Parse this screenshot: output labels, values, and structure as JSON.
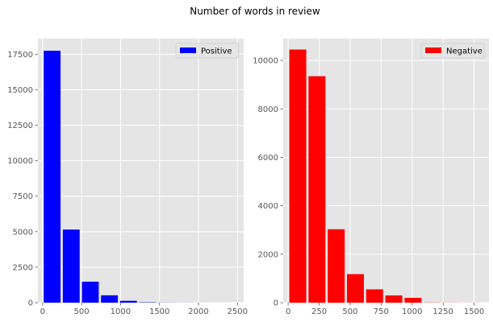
{
  "figure": {
    "suptitle": "Number of words in review"
  },
  "chart_data": [
    {
      "type": "bar",
      "subtype": "histogram",
      "panel": "left",
      "color": "#0000ff",
      "background": "#e5e5e5",
      "grid": true,
      "legend": {
        "position": "top-right",
        "label": "Positive"
      },
      "xlim": [
        -60,
        2580
      ],
      "ylim": [
        0,
        18600
      ],
      "xticks": [
        0,
        500,
        1000,
        1500,
        2000,
        2500
      ],
      "xtick_labels": [
        "0",
        "500",
        "1000",
        "1500",
        "2000",
        "2500"
      ],
      "yticks": [
        0,
        2500,
        5000,
        7500,
        10000,
        12500,
        15000,
        17500
      ],
      "ytick_labels": [
        "0",
        "2500",
        "5000",
        "7500",
        "10000",
        "12500",
        "15000",
        "17500"
      ],
      "bins": [
        {
          "x0": 0,
          "x1": 245,
          "value": 17750
        },
        {
          "x0": 245,
          "x1": 490,
          "value": 5150
        },
        {
          "x0": 490,
          "x1": 735,
          "value": 1480
        },
        {
          "x0": 735,
          "x1": 980,
          "value": 520
        },
        {
          "x0": 980,
          "x1": 1225,
          "value": 130
        },
        {
          "x0": 1225,
          "x1": 1470,
          "value": 25
        },
        {
          "x0": 1470,
          "x1": 1715,
          "value": 8
        },
        {
          "x0": 1715,
          "x1": 1960,
          "value": 4
        },
        {
          "x0": 1960,
          "x1": 2205,
          "value": 2
        },
        {
          "x0": 2205,
          "x1": 2450,
          "value": 1
        }
      ]
    },
    {
      "type": "bar",
      "subtype": "histogram",
      "panel": "right",
      "color": "#ff0000",
      "background": "#e5e5e5",
      "grid": true,
      "legend": {
        "position": "top-right",
        "label": "Negative"
      },
      "xlim": [
        -40,
        1620
      ],
      "ylim": [
        0,
        10900
      ],
      "xticks": [
        0,
        250,
        500,
        750,
        1000,
        1250,
        1500
      ],
      "xtick_labels": [
        "0",
        "250",
        "500",
        "750",
        "1000",
        "1250",
        "1500"
      ],
      "yticks": [
        0,
        2000,
        4000,
        6000,
        8000,
        10000
      ],
      "ytick_labels": [
        "0",
        "2000",
        "4000",
        "6000",
        "8000",
        "10000"
      ],
      "bins": [
        {
          "x0": 0,
          "x1": 155,
          "value": 10450
        },
        {
          "x0": 155,
          "x1": 310,
          "value": 9350
        },
        {
          "x0": 310,
          "x1": 465,
          "value": 3030
        },
        {
          "x0": 465,
          "x1": 620,
          "value": 1180
        },
        {
          "x0": 620,
          "x1": 775,
          "value": 550
        },
        {
          "x0": 775,
          "x1": 930,
          "value": 300
        },
        {
          "x0": 930,
          "x1": 1085,
          "value": 200
        },
        {
          "x0": 1085,
          "x1": 1240,
          "value": 8
        },
        {
          "x0": 1240,
          "x1": 1395,
          "value": 4
        },
        {
          "x0": 1395,
          "x1": 1550,
          "value": 2
        }
      ]
    }
  ]
}
